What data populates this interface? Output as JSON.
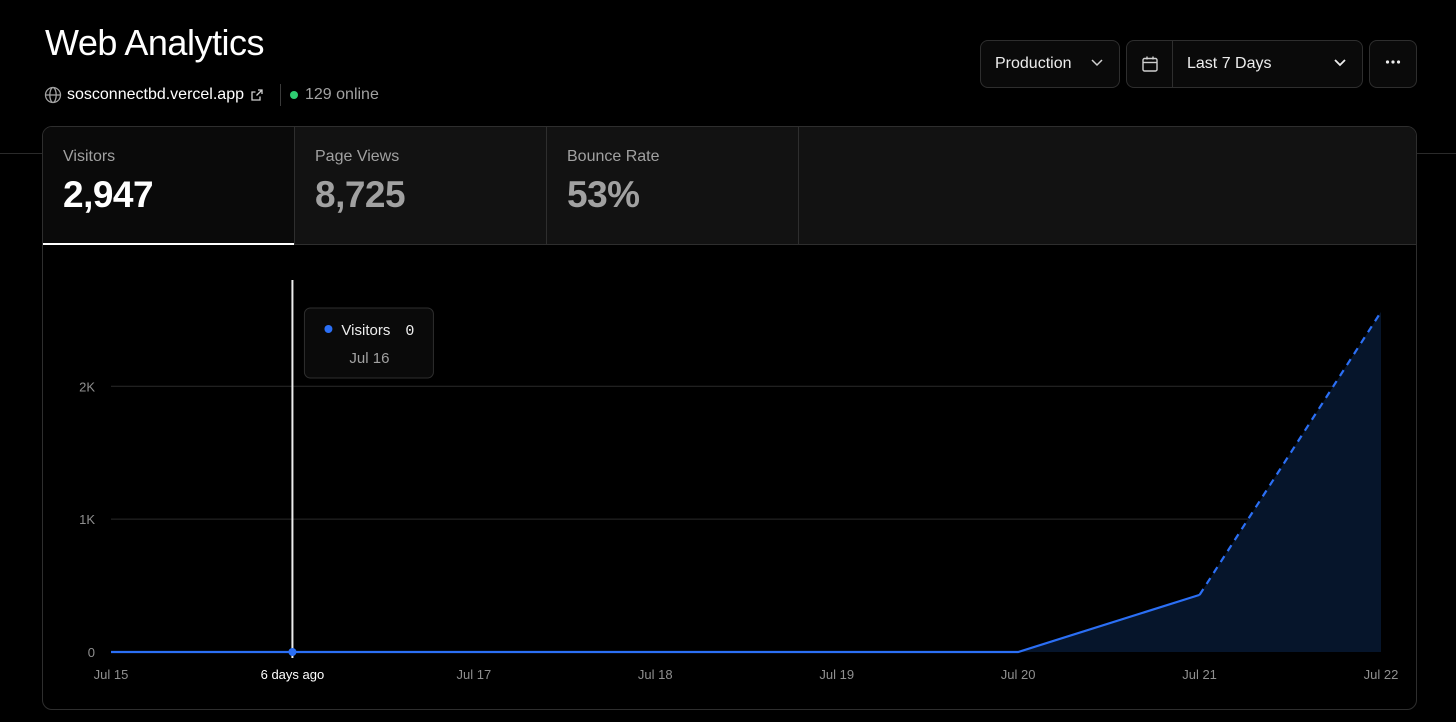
{
  "page": {
    "title": "Web Analytics",
    "domain": "sosconnectbd.vercel.app",
    "online": "129 online",
    "environment": "Production",
    "date_range": "Last 7 Days",
    "icons": [
      "globe-icon",
      "external-link-icon",
      "chevron-down-icon",
      "calendar-icon",
      "more-icon"
    ]
  },
  "tabs": [
    {
      "label": "Visitors",
      "value": "2,947",
      "active": true
    },
    {
      "label": "Page Views",
      "value": "8,725",
      "active": false
    },
    {
      "label": "Bounce Rate",
      "value": "53%",
      "active": false
    }
  ],
  "tooltip": {
    "series": "Visitors",
    "value": "0",
    "date": "Jul 16"
  },
  "cursor_label": "6 days ago",
  "colors": {
    "series": "#2b6ff5",
    "area": "#06152b",
    "online": "#2ecc71",
    "grid": "#2a2a2a"
  },
  "chart_data": {
    "type": "area",
    "x": [
      "Jul 15",
      "Jul 16",
      "Jul 17",
      "Jul 18",
      "Jul 19",
      "Jul 20",
      "Jul 21",
      "Jul 22"
    ],
    "series": [
      {
        "name": "Visitors",
        "values": [
          0,
          0,
          0,
          0,
          0,
          0,
          430,
          2560
        ]
      }
    ],
    "dashed_from_index": 6,
    "ylim": [
      0,
      2800
    ],
    "yticks": [
      0,
      1000,
      2000
    ],
    "ytick_labels": [
      "0",
      "1K",
      "2K"
    ],
    "hover_index": 1,
    "grid": true,
    "legend": "none"
  }
}
